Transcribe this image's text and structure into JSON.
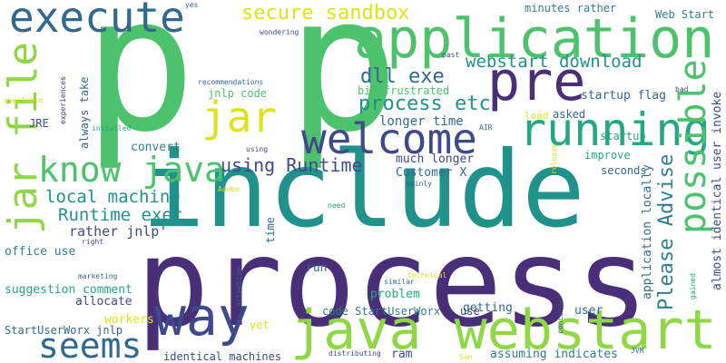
{
  "colors": {
    "navy": "#482f77",
    "purple": "#3e4a89",
    "slate": "#31688e",
    "steel": "#2f7e8e",
    "teal": "#21918c",
    "seagreen": "#26a784",
    "green": "#4cc26c",
    "lime": "#8fd744",
    "yellow": "#dde318",
    "background": "#ffffff"
  },
  "words": {
    "pp": "p p",
    "include": "include",
    "process": "process",
    "application": "application",
    "java_webstart": "java webstart",
    "pre": "pre",
    "running": "running",
    "welcome": "welcome",
    "jar_file": "jar file",
    "execute": "execute",
    "way": "way",
    "seems": "seems",
    "possible": "possible",
    "jar": "jar",
    "know_java": "know java",
    "secure_sandbox": "secure sandbox",
    "dll_exe": "dll exe",
    "webstart_download": "webstart download",
    "process_etc": "process etc",
    "please_advise": "Please Advise",
    "using_runtime": "using Runtime",
    "local_machine": "local machine",
    "runtime_exec": "Runtime exec",
    "rather_jnlp": "rather jnlp'",
    "almost_identical_user_invoke": "almost identical user invoke",
    "application_locally": "application locally",
    "much_longer": "much longer",
    "customer_x": "Customer X",
    "longer_time": "longer time",
    "minutes_rather": "minutes rather",
    "web_start": "Web Start",
    "startup_flag": "startup flag",
    "bit_frustrated": "bit frustrated",
    "jnlp_code": "jnlp code",
    "always_take": "always take",
    "convert": "convert",
    "improve": "improve",
    "startup": "startup",
    "seconds": "seconds",
    "asked": "asked",
    "load": "load",
    "office_use": "office use",
    "suggestion_comment": "suggestion comment",
    "allocate": "allocate",
    "workers": "workers",
    "startuserworx_jnlp": "StartUserWorx jnlp",
    "identical_machines": "identical machines",
    "code_startuserworx": "code StartUserWorx",
    "assuming_indicates": "assuming indicates",
    "run": "run",
    "problem": "problem",
    "getting": "getting",
    "user": "user",
    "use": "use",
    "ram": "ram",
    "yet": "yet",
    "time": "time",
    "jre": "JRE",
    "air": "AIR",
    "yes": "yes",
    "wondering": "wondering",
    "past": "past",
    "recommendations": "recommendations",
    "experiences": "experiences",
    "available": "available",
    "installed": "installed",
    "using": "using",
    "adobe": "Adobe",
    "need": "need",
    "mainly": "mainly",
    "release": "release",
    "bad": "bad",
    "right": "right",
    "marketing": "marketing",
    "attention": "attention",
    "similar": "similar",
    "technical": "technical",
    "concerns": "concerns",
    "gained": "gained",
    "distributing": "distributing",
    "sun": "Sun",
    "jvm": "JVM"
  }
}
